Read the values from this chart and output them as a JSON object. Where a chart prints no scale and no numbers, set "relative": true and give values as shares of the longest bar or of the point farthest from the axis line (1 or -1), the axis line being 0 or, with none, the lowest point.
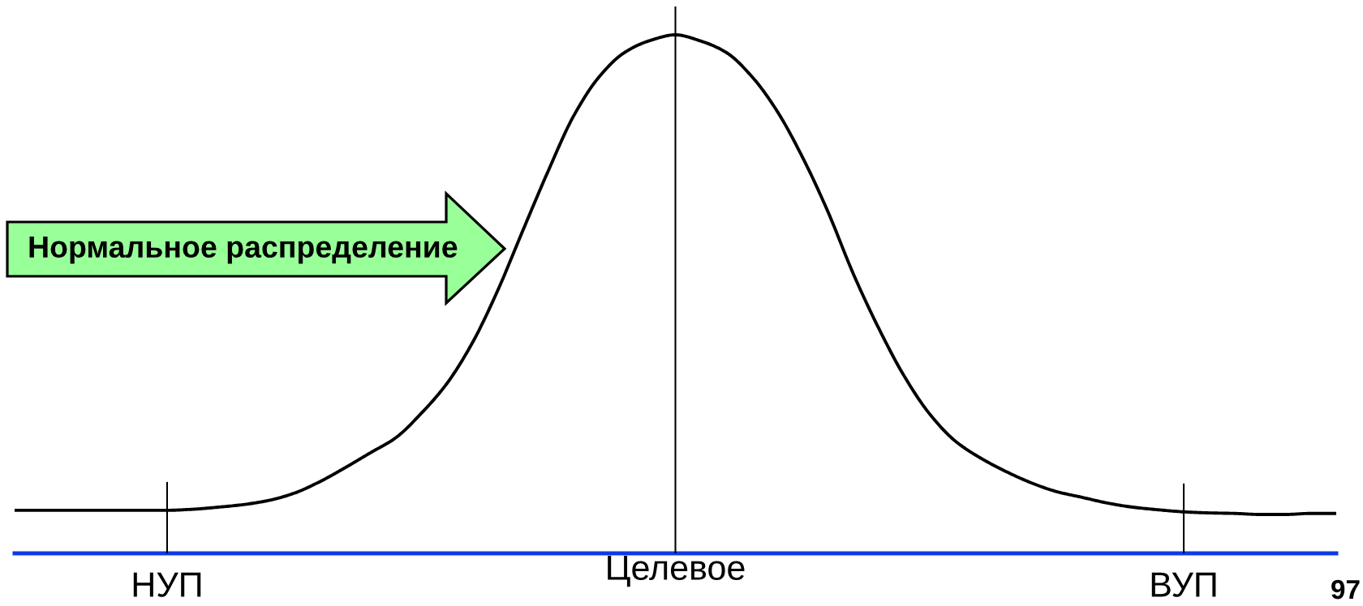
{
  "chart_data": {
    "type": "line",
    "relative": true,
    "categories": [
      null,
      null,
      null,
      null,
      null,
      null,
      "НУП",
      null,
      null,
      null,
      null,
      null,
      null,
      null,
      null,
      null,
      null,
      null,
      null,
      null,
      null,
      null,
      null,
      null,
      null,
      null,
      "Целевое",
      null,
      null,
      null,
      null,
      null,
      null,
      null,
      null,
      null,
      null,
      null,
      null,
      null,
      null,
      null,
      null,
      null,
      null,
      null,
      "ВУП",
      null,
      null,
      null,
      null,
      null,
      null
    ],
    "series": [
      {
        "color": "#000000",
        "values": [
          0.083,
          0.083,
          0.083,
          0.083,
          0.083,
          0.083,
          0.083,
          0.085,
          0.089,
          0.094,
          0.102,
          0.116,
          0.138,
          0.165,
          0.194,
          0.223,
          0.27,
          0.327,
          0.405,
          0.506,
          0.623,
          0.738,
          0.844,
          0.919,
          0.966,
          0.989,
          1.0,
          0.988,
          0.966,
          0.92,
          0.853,
          0.764,
          0.659,
          0.539,
          0.434,
          0.342,
          0.269,
          0.217,
          0.184,
          0.158,
          0.136,
          0.119,
          0.108,
          0.097,
          0.089,
          0.084,
          0.08,
          0.078,
          0.077,
          0.075,
          0.075,
          0.077,
          0.077
        ]
      }
    ],
    "ref_lines": [
      {
        "axis": "x",
        "value": "НУП",
        "color": "#000000"
      },
      {
        "axis": "x",
        "value": "Целевое",
        "color": "#000000"
      },
      {
        "axis": "x",
        "value": "ВУП",
        "color": "#000000"
      }
    ],
    "annotations": [
      "Нормальное распределение",
      "97"
    ]
  }
}
